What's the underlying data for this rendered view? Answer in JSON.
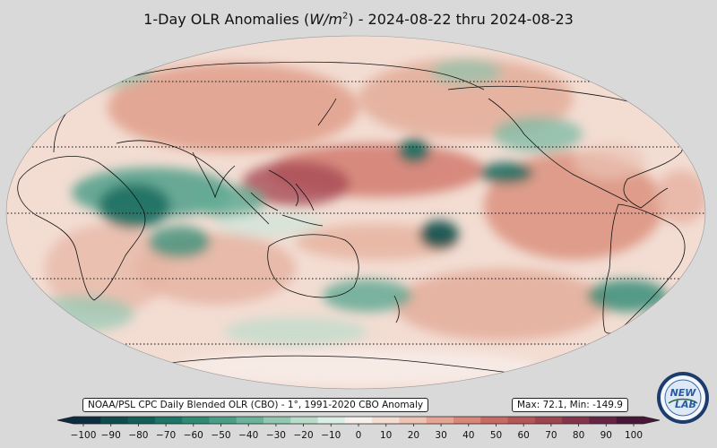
{
  "title": {
    "prefix": "1-Day OLR Anomalies (",
    "unit_base": "W/m",
    "unit_exp": "2",
    "suffix": ") - 2024-08-22 thru 2024-08-23"
  },
  "source_label": "NOAA/PSL CPC Daily Blended OLR (CBO) - 1°, 1991-2020 CBO Anomaly",
  "stats_label": "Max: 72.1,  Min: -149.9",
  "colorbar": {
    "ticks": [
      "−100",
      "−90",
      "−80",
      "−70",
      "−60",
      "−50",
      "−40",
      "−30",
      "−20",
      "−10",
      "0",
      "10",
      "20",
      "30",
      "40",
      "50",
      "60",
      "70",
      "80",
      "90",
      "100"
    ],
    "colors": [
      "#0b2d3f",
      "#0f4a4c",
      "#135e57",
      "#1c7566",
      "#2d8a73",
      "#4b9e86",
      "#6cb39b",
      "#92c8b2",
      "#b9dccb",
      "#dcefe6",
      "#f8f0ec",
      "#f4ddd3",
      "#eec3b3",
      "#e5a592",
      "#d98776",
      "#c96b62",
      "#b65656",
      "#9e4550",
      "#84344b",
      "#662444",
      "#4a1638"
    ]
  },
  "logo": {
    "text_top": "NEW",
    "text_bottom": "LAB",
    "ring_text": "PHYSICAL SCIENCES LABORATORY"
  },
  "map_meta": {
    "graticule_lats": [
      -60,
      -30,
      0,
      30,
      60
    ]
  }
}
